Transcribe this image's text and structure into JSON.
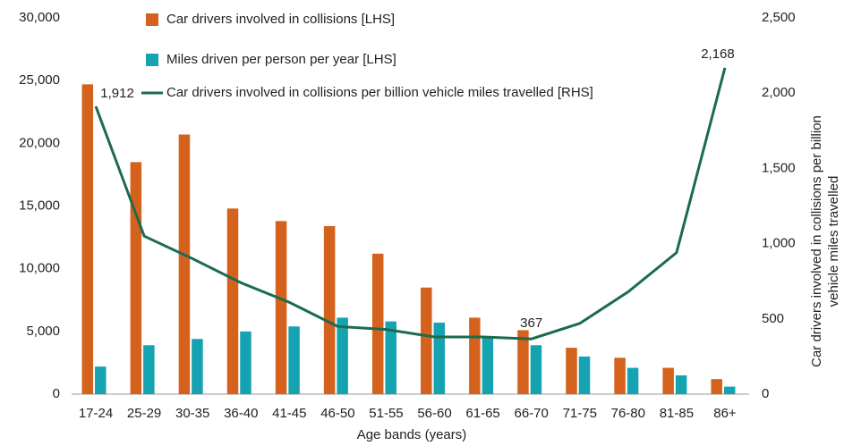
{
  "chart_data": {
    "type": "bar-line",
    "categories": [
      "17-24",
      "25-29",
      "30-35",
      "36-40",
      "41-45",
      "46-50",
      "51-55",
      "56-60",
      "61-65",
      "66-70",
      "71-75",
      "76-80",
      "81-85",
      "86+"
    ],
    "series": [
      {
        "name": "Car drivers involved in collisions [LHS]",
        "color": "#d5621c",
        "type": "bar",
        "axis": "y",
        "values": [
          24700,
          18500,
          20700,
          14800,
          13800,
          13400,
          11200,
          8500,
          6100,
          5100,
          3700,
          2900,
          2100,
          1200
        ]
      },
      {
        "name": "Miles driven per person per year [LHS]",
        "color": "#16a3b1",
        "type": "bar",
        "axis": "y",
        "values": [
          2200,
          3900,
          4400,
          5000,
          5400,
          6100,
          5800,
          5700,
          4500,
          3900,
          3000,
          2100,
          1500,
          600
        ]
      },
      {
        "name": "Car drivers involved in collisions per billion vehicle miles travelled [RHS]",
        "color": "#1c6b4e",
        "type": "line",
        "axis": "y2",
        "values": [
          1912,
          1050,
          900,
          740,
          610,
          450,
          430,
          380,
          380,
          367,
          470,
          680,
          940,
          2168
        ],
        "value_labels": [
          "1,912",
          null,
          null,
          null,
          null,
          null,
          null,
          null,
          null,
          "367",
          null,
          null,
          null,
          "2,168"
        ]
      }
    ],
    "xlabel": "Age bands (years)",
    "y2label": [
      "Car drivers involved in collisions per billion",
      "vehicle miles travelled"
    ],
    "ylim": [
      0,
      30000
    ],
    "yticks": [
      0,
      {
        "value": 5000,
        "label": "5,000"
      },
      {
        "value": 10000,
        "label": "10,000"
      },
      {
        "value": 15000,
        "label": "15,000"
      },
      {
        "value": 20000,
        "label": "20,000"
      },
      {
        "value": 25000,
        "label": "25,000"
      },
      {
        "value": 30000,
        "label": "30,000"
      }
    ],
    "y2lim": [
      0,
      2500
    ],
    "y2ticks": [
      0,
      500,
      {
        "value": 1000,
        "label": "1,000"
      },
      {
        "value": 1500,
        "label": "1,500"
      },
      {
        "value": 2000,
        "label": "2,000"
      },
      {
        "value": 2500,
        "label": "2,500"
      }
    ],
    "grid": false,
    "legend": "top"
  }
}
